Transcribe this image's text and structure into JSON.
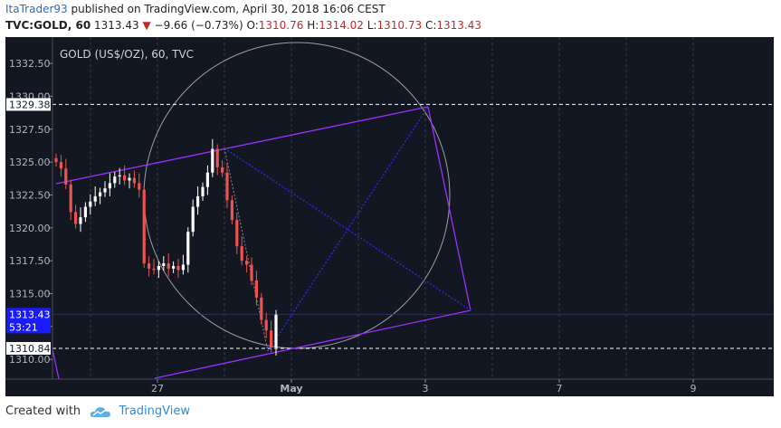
{
  "header": {
    "author": "ItaTrader93",
    "published_text": "published on TradingView.com, April 30, 2018 16:06 CEST",
    "symbol": "TVC:GOLD, 60",
    "last_price": "1313.43",
    "change": "−9.66 (−0.73%)",
    "open_label": "O:",
    "open": "1310.76",
    "high_label": "H:",
    "high": "1314.02",
    "low_label": "L:",
    "low": "1310.73",
    "close_label": "C:",
    "close": "1313.43"
  },
  "chart_data": {
    "type": "candlestick",
    "title": "GOLD (US$/OZ), 60, TVC",
    "y_ticks": [
      "1332.50",
      "1330.00",
      "1327.50",
      "1325.00",
      "1322.50",
      "1320.00",
      "1317.50",
      "1315.00",
      "1312.50",
      "1310.00"
    ],
    "ylim": [
      1308.5,
      1334.5
    ],
    "x_ticks": [
      "27",
      "May",
      "3",
      "7",
      "9"
    ],
    "price_labels": {
      "upper_level": "1329.38",
      "current_price": "1313.43",
      "countdown": "53:21",
      "lower_level": "1310.84"
    },
    "horizontal_levels": [
      1329.38,
      1313.43,
      1310.84
    ],
    "candle_close_path": [
      1325.0,
      1324.5,
      1323.3,
      1321.2,
      1320.3,
      1320.8,
      1321.6,
      1322.0,
      1322.4,
      1322.7,
      1323.0,
      1323.4,
      1323.9,
      1324.0,
      1323.6,
      1323.8,
      1323.4,
      1322.9,
      1317.3,
      1316.9,
      1316.8,
      1317.1,
      1317.3,
      1316.9,
      1317.1,
      1316.8,
      1317.2,
      1319.7,
      1321.6,
      1322.4,
      1323.1,
      1324.2,
      1326.0,
      1324.6,
      1324.2,
      1322.1,
      1320.6,
      1318.6,
      1317.5,
      1317.2,
      1316.0,
      1314.7,
      1313.0,
      1312.2,
      1310.9,
      1313.4
    ],
    "colors": {
      "background": "#131722",
      "candle_up": "#ffffff",
      "candle_down": "#ef5350",
      "channel": "#9b30ff",
      "pitch_lines": "#2a2aee",
      "circle": "#9e9e9e",
      "level_line": "#1a1aff"
    }
  },
  "footer": {
    "created_with": "Created with",
    "brand": "TradingView"
  }
}
